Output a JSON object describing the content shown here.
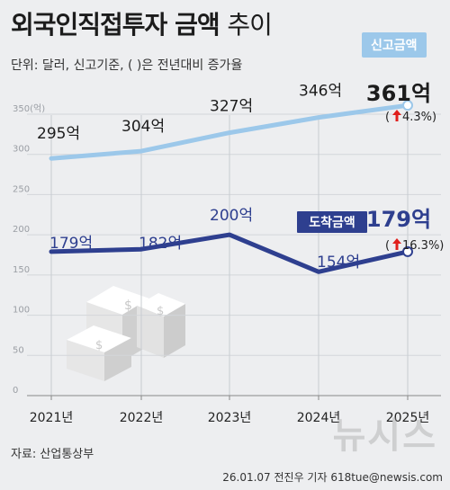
{
  "header": {
    "title_bold": "외국인직접투자 금액",
    "title_light": "추이",
    "unit_note": "단위: 달러, 신고기준, ( )은 전년대비 증가율"
  },
  "legend": {
    "reported_label": "신고금액",
    "arrived_label": "도착금액"
  },
  "footer": {
    "source": "자료: 산업통상부",
    "credit": "26.01.07 전진우 기자 618tue@newsis.com",
    "watermark": "뉴시스"
  },
  "colors": {
    "reported": "#9cc8ea",
    "arrived": "#2e3f8f",
    "increase_arrow": "#e0201d"
  },
  "chart_data": {
    "type": "line",
    "title": "외국인직접투자 금액 추이",
    "categories": [
      "2021년",
      "2022년",
      "2023년",
      "2024년",
      "2025년"
    ],
    "ylim": [
      0,
      350
    ],
    "yticks": [
      0,
      50,
      100,
      150,
      200,
      250,
      300,
      350
    ],
    "ytick_labels": [
      "0",
      "50",
      "100",
      "150",
      "200",
      "250",
      "300",
      "350(억)"
    ],
    "grid": true,
    "series": [
      {
        "name": "신고금액",
        "values": [
          295,
          304,
          327,
          346,
          361
        ],
        "labels": [
          "295억",
          "304억",
          "327억",
          "346억",
          "361억"
        ],
        "last_change": "4.3%)"
      },
      {
        "name": "도착금액",
        "values": [
          179,
          182,
          200,
          154,
          179
        ],
        "labels": [
          "179억",
          "182억",
          "200억",
          "154억",
          "179억"
        ],
        "last_change": "16.3%)"
      }
    ]
  }
}
